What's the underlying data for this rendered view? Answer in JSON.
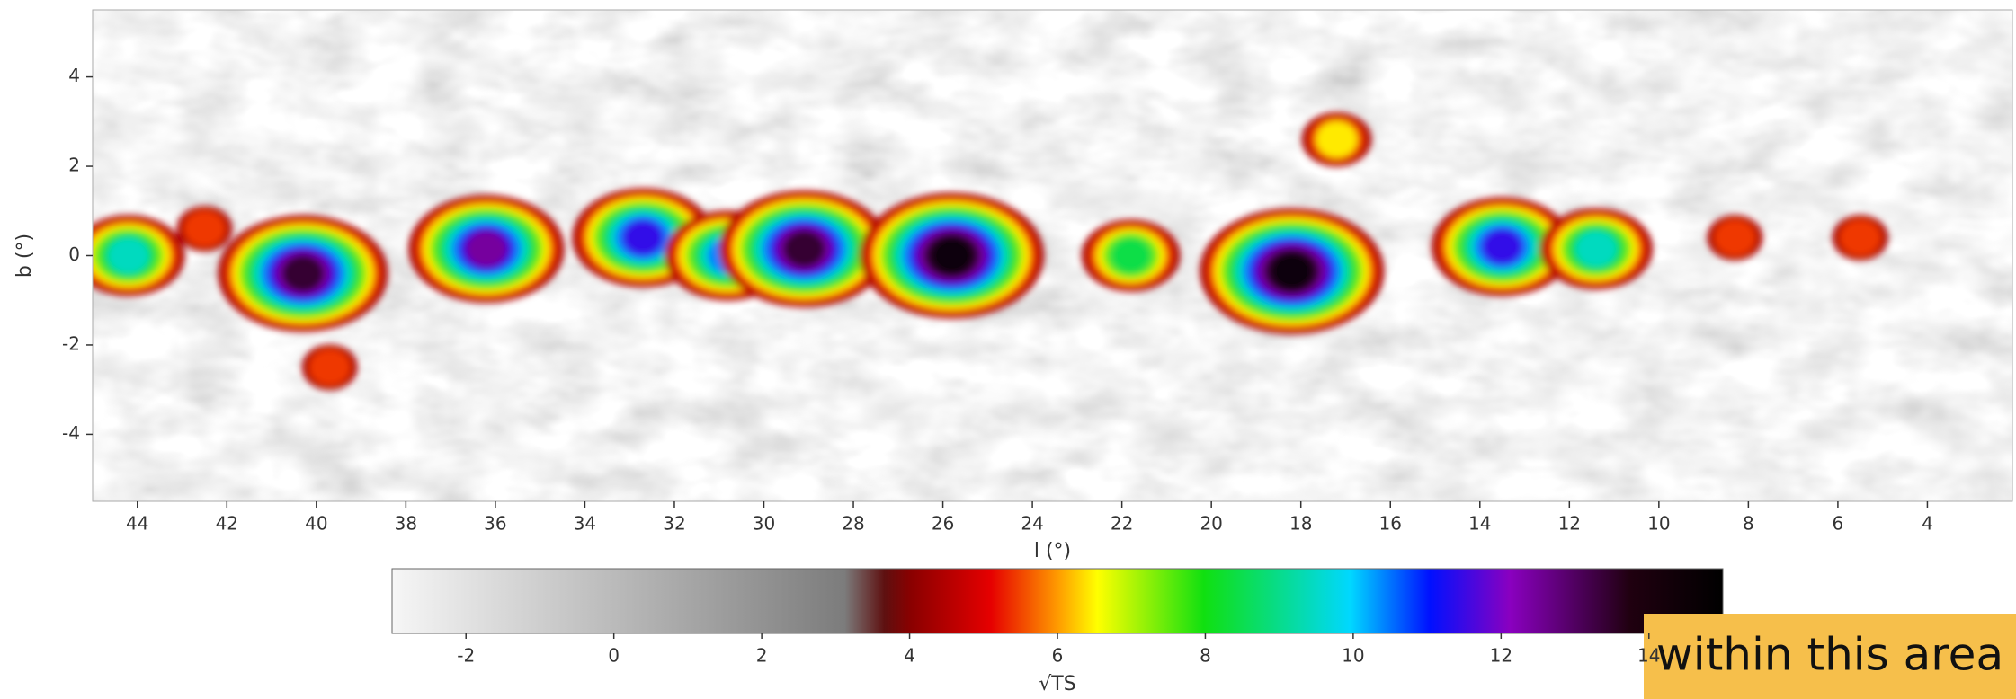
{
  "chart_data": {
    "type": "heatmap",
    "x_label": "l (°)",
    "y_label": "b (°)",
    "x": [
      44.2,
      40.3,
      36.2,
      32.7,
      30.8,
      29.1,
      25.8,
      21.8,
      18.2,
      13.5,
      11.4,
      17.2,
      8.3,
      5.5,
      42.5,
      39.7
    ],
    "y": [
      0,
      -0.4,
      0.15,
      0.4,
      0,
      0.15,
      0,
      0,
      -0.35,
      0.2,
      0.15,
      2.6,
      0.4,
      0.4,
      0.6,
      -2.5
    ],
    "values": [
      9,
      13,
      12,
      11,
      10,
      13,
      14,
      8,
      14,
      11,
      9,
      6,
      5,
      5,
      5,
      5
    ],
    "xlim": [
      45,
      2.1
    ],
    "ylim": [
      -5.5,
      5.5
    ],
    "xticks": [
      44,
      42,
      40,
      38,
      36,
      34,
      32,
      30,
      28,
      26,
      24,
      22,
      20,
      18,
      16,
      14,
      12,
      10,
      8,
      6,
      4
    ],
    "yticks": [
      4,
      2,
      0,
      -2,
      -4
    ],
    "colorbar_label": "√TS",
    "colorbar_lim": [
      -3,
      15
    ],
    "colorbar_ticks": [
      -2,
      0,
      2,
      4,
      6,
      8,
      10,
      12,
      14
    ]
  },
  "annotation": "within this area"
}
